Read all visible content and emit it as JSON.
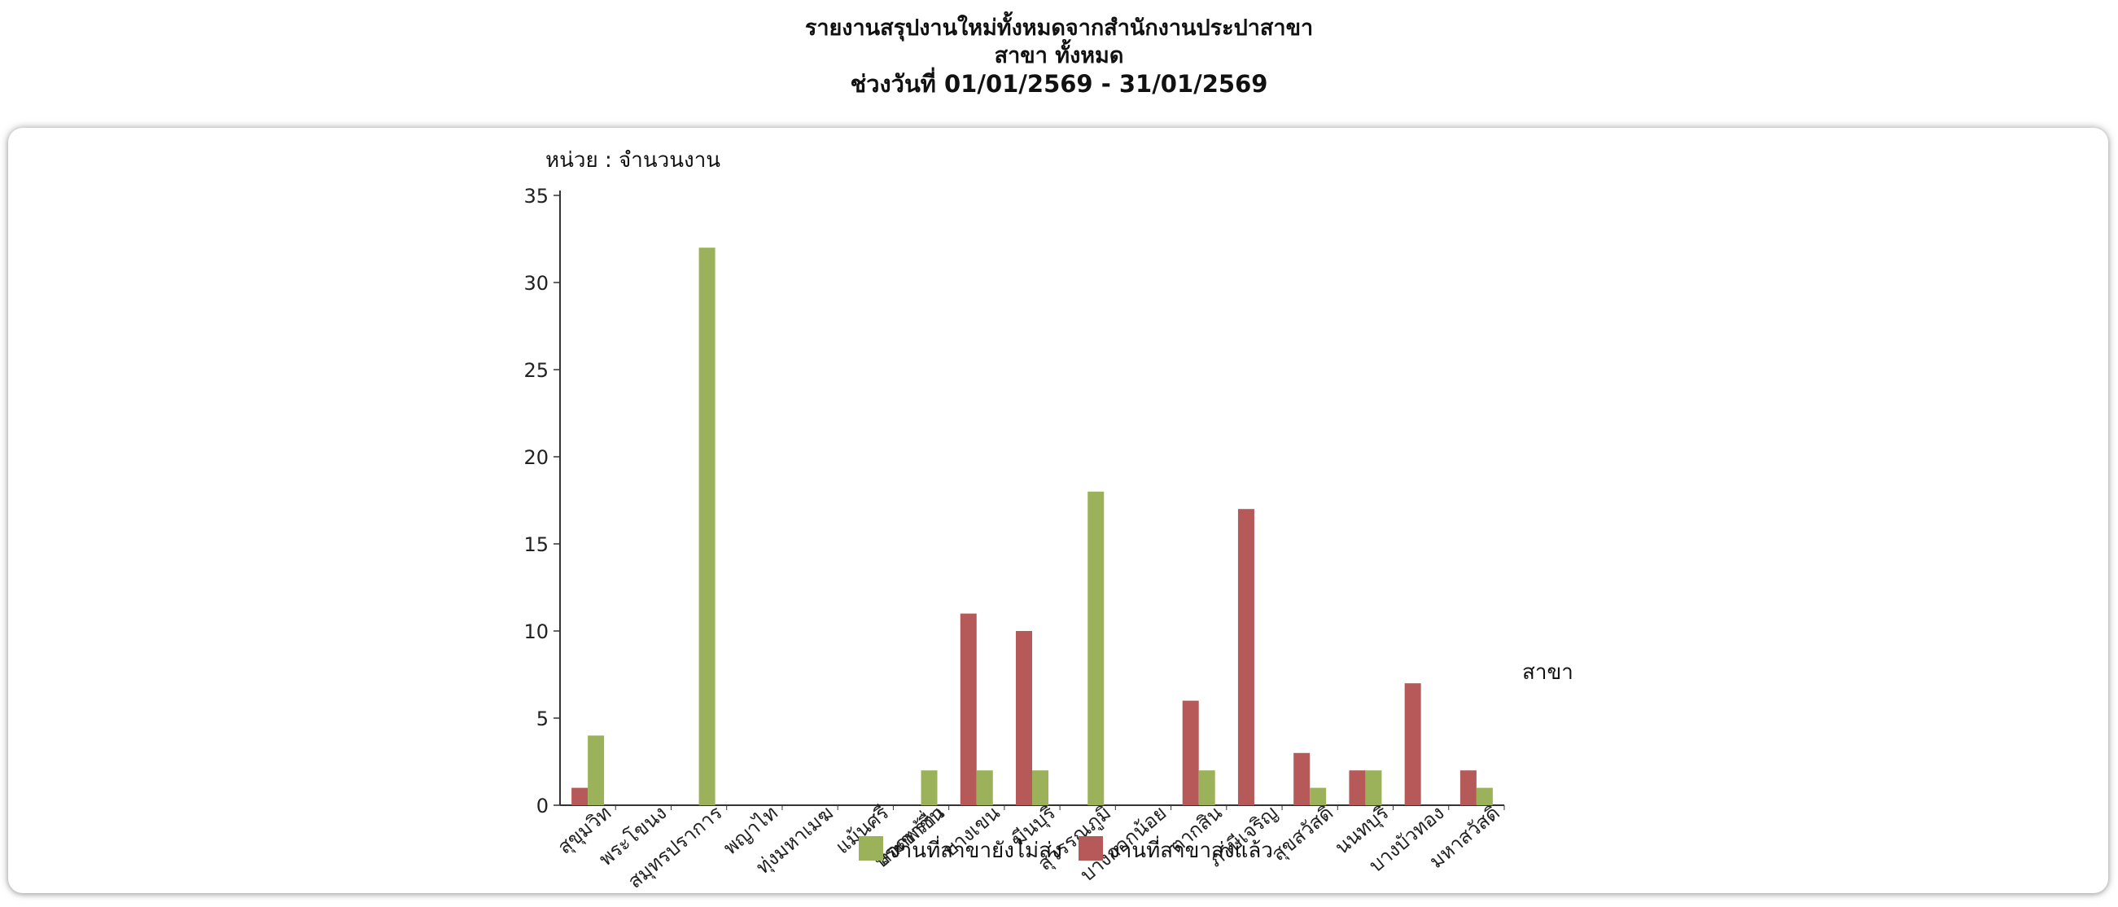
{
  "header": {
    "title": "รายงานสรุปงานใหม่ทั้งหมดจากสำนักงานประปาสาขา",
    "branch_line": "สาขา ทั้งหมด",
    "date_line": "ช่วงวันที่ 01/01/2569 - 31/01/2569"
  },
  "chart_data": {
    "type": "bar",
    "unit_label": "หน่วย : จำนวนงาน",
    "xlabel": "สาขา",
    "ylabel": "",
    "ylim": [
      0,
      35
    ],
    "yticks": [
      0,
      5,
      10,
      15,
      20,
      25,
      30,
      35
    ],
    "grid": false,
    "legend_position": "bottom",
    "categories": [
      "สุขุมวิท",
      "พระโขนง",
      "สมุทรปราการ",
      "พญาไท",
      "ทุ่งมหาเมฆ",
      "แม้นศรี",
      "ลาดพร้าว",
      "บางเขน",
      "มีนบุรี",
      "สุวรรณภูมิ",
      "บางกอกน้อย",
      "ตากสิน",
      "ภาษีเจริญ",
      "สุขสวัสดิ์",
      "นนทบุรี",
      "บางบัวทอง",
      "มหาสวัสดิ์"
    ],
    "extra_tick_labels": [
      "ประชาชื่น"
    ],
    "series": [
      {
        "name": "งานที่สาขาส่งแล้ว",
        "color": "#b55a58",
        "values": [
          1,
          0,
          0,
          0,
          0,
          0,
          0,
          11,
          10,
          0,
          0,
          6,
          17,
          3,
          2,
          7,
          2
        ]
      },
      {
        "name": "งานที่สาขายังไม่ส่ง",
        "color": "#9bb25a",
        "values": [
          4,
          0,
          32,
          0,
          0,
          0,
          2,
          2,
          2,
          18,
          0,
          2,
          0,
          1,
          2,
          0,
          1
        ]
      }
    ],
    "legend_order": [
      "งานที่สาขายังไม่ส่ง",
      "งานที่สาขาส่งแล้ว"
    ]
  }
}
